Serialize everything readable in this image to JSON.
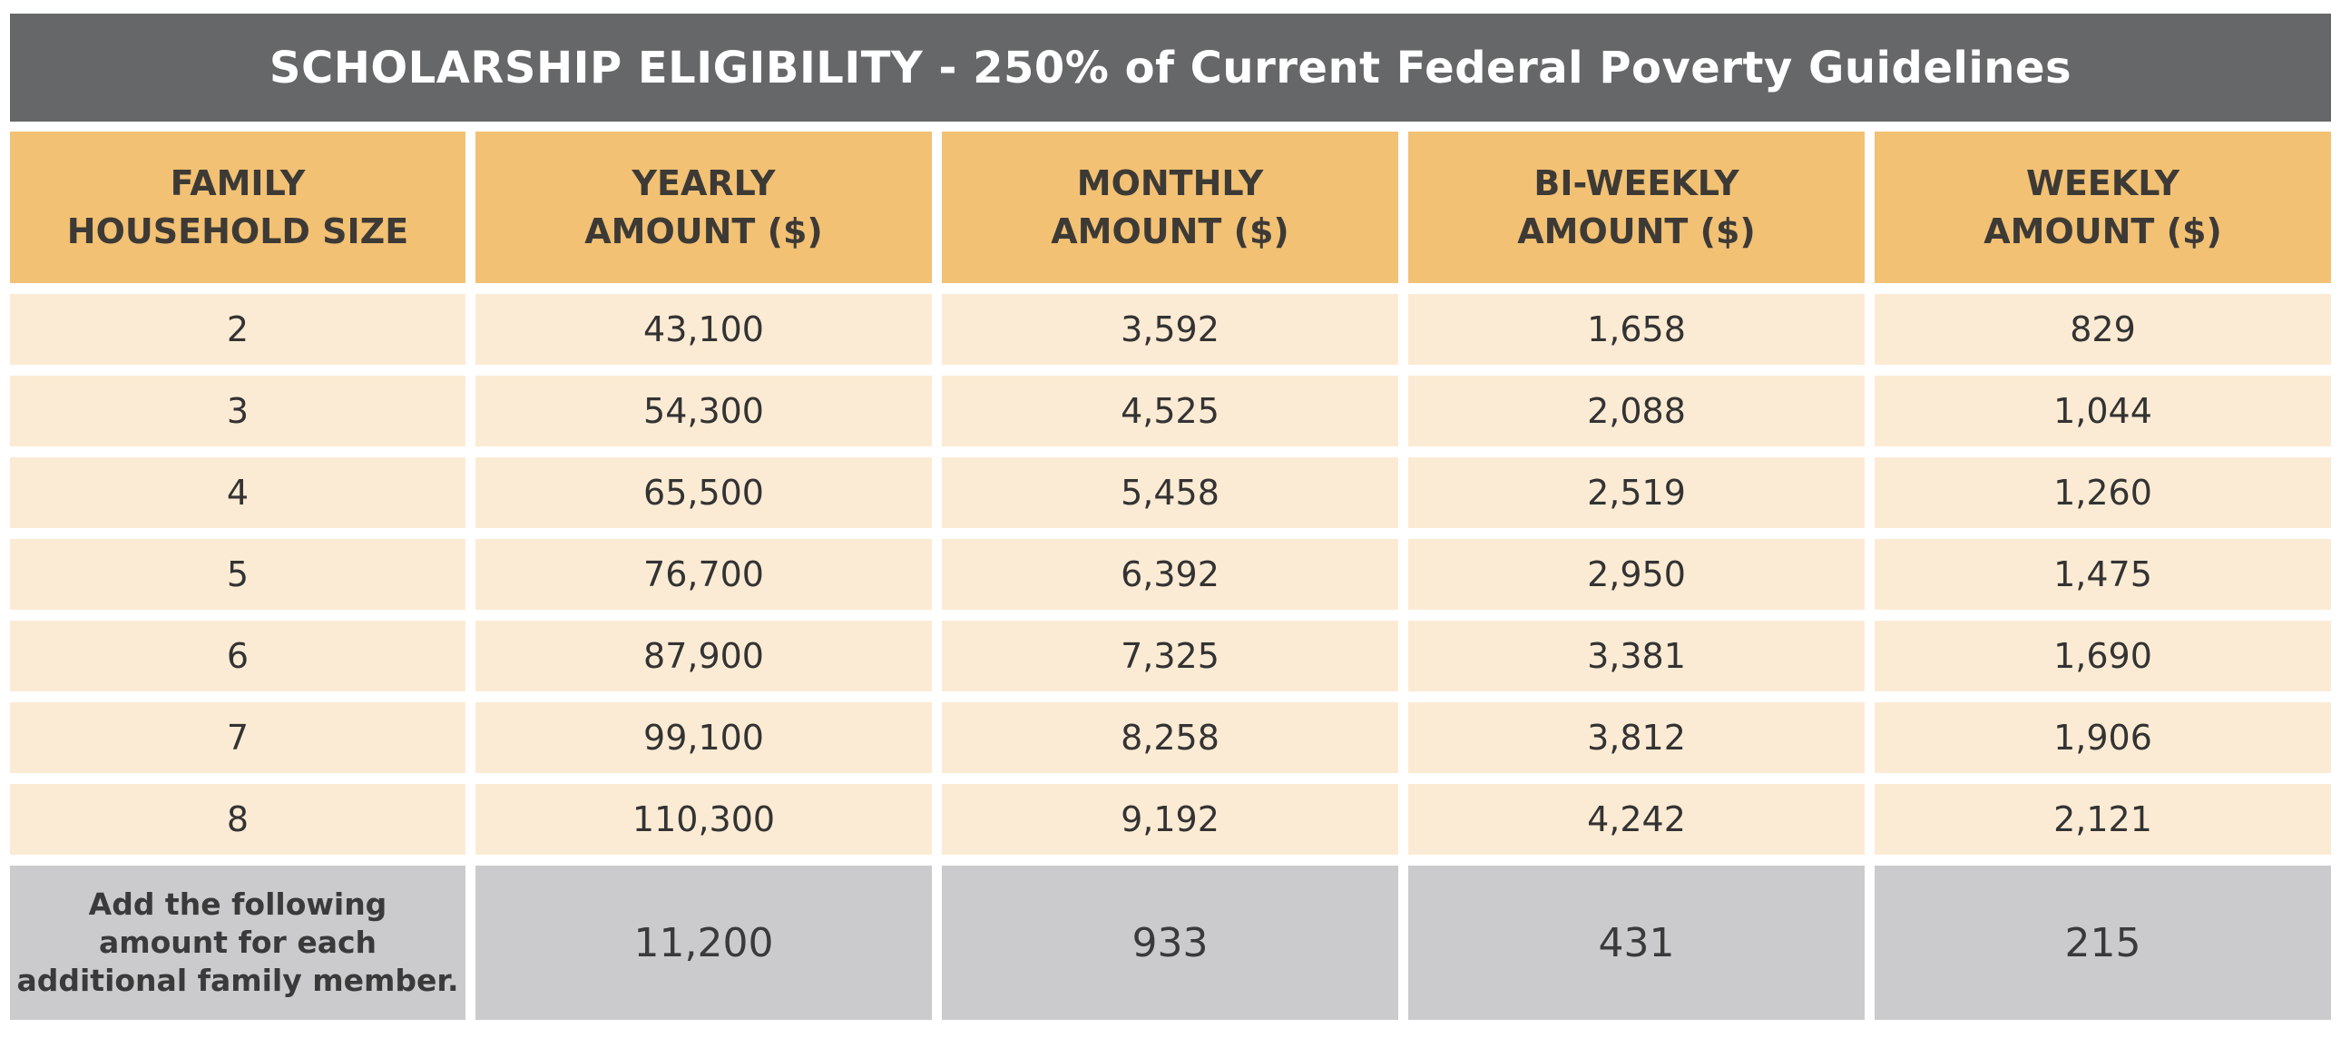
{
  "title": "SCHOLARSHIP ELIGIBILITY - 250% of Current Federal Poverty Guidelines",
  "columns": [
    "FAMILY\nHOUSEHOLD SIZE",
    "YEARLY\nAMOUNT ($)",
    "MONTHLY\nAMOUNT ($)",
    "BI-WEEKLY\nAMOUNT ($)",
    "WEEKLY\nAMOUNT ($)"
  ],
  "rows": [
    [
      "2",
      "43,100",
      "3,592",
      "1,658",
      "829"
    ],
    [
      "3",
      "54,300",
      "4,525",
      "2,088",
      "1,044"
    ],
    [
      "4",
      "65,500",
      "5,458",
      "2,519",
      "1,260"
    ],
    [
      "5",
      "76,700",
      "6,392",
      "2,950",
      "1,475"
    ],
    [
      "6",
      "87,900",
      "7,325",
      "3,381",
      "1,690"
    ],
    [
      "7",
      "99,100",
      "8,258",
      "3,812",
      "1,906"
    ],
    [
      "8",
      "110,300",
      "9,192",
      "4,242",
      "2,121"
    ]
  ],
  "footer": {
    "label": "Add the following\namount for each\nadditional family member.",
    "values": [
      "11,200",
      "933",
      "431",
      "215"
    ]
  },
  "colors": {
    "title_bg": "#666768",
    "header_bg": "#f2c174",
    "row_bg": "#fcebd4",
    "footer_bg": "#cbcbcd"
  }
}
